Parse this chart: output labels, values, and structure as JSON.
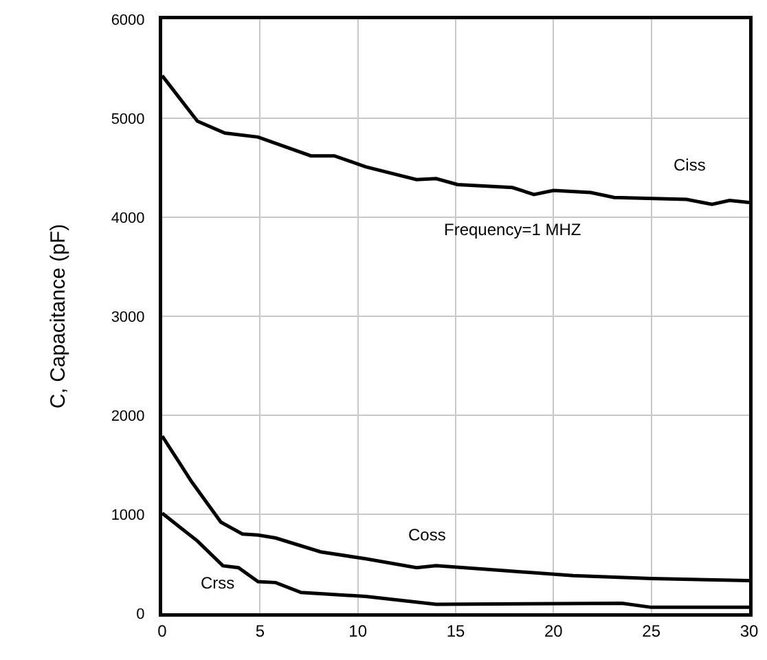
{
  "chart_data": {
    "type": "line",
    "ylabel": "C, Capacitance (pF)",
    "xlim": [
      0,
      30
    ],
    "xticks": [
      0,
      5,
      10,
      15,
      20,
      25,
      30
    ],
    "ylim": [
      0,
      6000
    ],
    "yticks": [
      0,
      1000,
      2000,
      3000,
      4000,
      5000,
      6000
    ],
    "grid": true,
    "legend": false,
    "marker": "none",
    "line_style": "solid",
    "annotations": [
      "Frequency=1 MHZ"
    ],
    "series": [
      {
        "name": "Ciss",
        "color": "#000000",
        "x": [
          0,
          1.8,
          3.2,
          4.9,
          7.6,
          8.8,
          10.4,
          13,
          14,
          15.1,
          17.9,
          19,
          20,
          21.9,
          23.1,
          26.8,
          28.1,
          29,
          30
        ],
        "values": [
          5430,
          4970,
          4850,
          4810,
          4620,
          4620,
          4510,
          4380,
          4390,
          4330,
          4300,
          4230,
          4270,
          4250,
          4200,
          4180,
          4130,
          4170,
          4150
        ]
      },
      {
        "name": "Coss",
        "color": "#000000",
        "x": [
          0,
          1.5,
          3,
          4.1,
          4.9,
          5.8,
          8.1,
          10.4,
          13,
          14,
          17.5,
          21,
          25,
          30
        ],
        "values": [
          1790,
          1330,
          920,
          800,
          790,
          760,
          620,
          550,
          460,
          480,
          430,
          380,
          350,
          330
        ]
      },
      {
        "name": "Crss",
        "color": "#000000",
        "x": [
          0,
          1.8,
          3.1,
          3.9,
          4.9,
          5.8,
          7.1,
          10.4,
          14,
          23.5,
          25,
          30
        ],
        "values": [
          1010,
          730,
          480,
          460,
          320,
          310,
          210,
          170,
          90,
          100,
          60,
          60
        ]
      }
    ]
  }
}
